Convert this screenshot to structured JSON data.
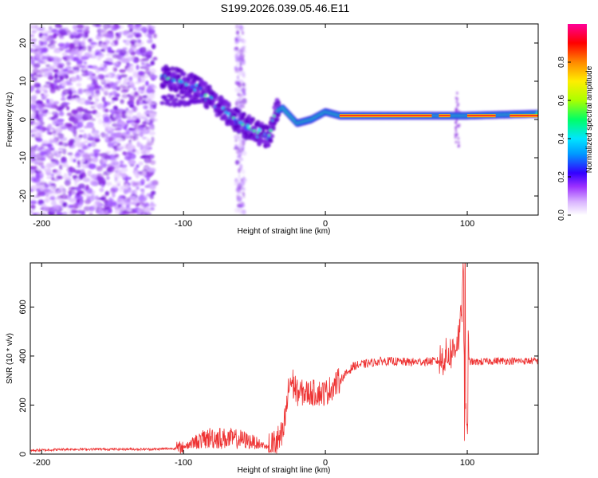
{
  "title": "S199.2026.039.05.46.E11",
  "chart_data": [
    {
      "type": "heatmap",
      "name": "spectrogram",
      "xlabel": "Height of straight line (km)",
      "ylabel": "Frequency (Hz)",
      "xlim": [
        -208,
        150
      ],
      "ylim": [
        -25,
        25
      ],
      "xticks": [
        -200,
        -100,
        0,
        100
      ],
      "yticks": [
        -20,
        -10,
        0,
        10,
        20
      ],
      "colorbar": {
        "label": "Normalized spectral amplitude",
        "range": [
          0,
          1
        ],
        "ticks": [
          0.0,
          0.2,
          0.4,
          0.6,
          0.8
        ],
        "colors": [
          "#ffffff",
          "#d9b3ff",
          "#9b30ff",
          "#3300ff",
          "#0099ff",
          "#00e5ff",
          "#00ff66",
          "#aaff00",
          "#ffee00",
          "#ff8800",
          "#ff0000",
          "#ff0099"
        ]
      },
      "ridge": [
        {
          "x": -115,
          "y": 11
        },
        {
          "x": -100,
          "y": 10
        },
        {
          "x": -90,
          "y": 8
        },
        {
          "x": -80,
          "y": 5
        },
        {
          "x": -70,
          "y": 2
        },
        {
          "x": -60,
          "y": -1
        },
        {
          "x": -50,
          "y": -3
        },
        {
          "x": -40,
          "y": -5
        },
        {
          "x": -35,
          "y": 2
        },
        {
          "x": -30,
          "y": 3
        },
        {
          "x": -20,
          "y": -1
        },
        {
          "x": -10,
          "y": 0
        },
        {
          "x": 0,
          "y": 2
        },
        {
          "x": 10,
          "y": 1
        },
        {
          "x": 90,
          "y": 1
        },
        {
          "x": 100,
          "y": 1
        },
        {
          "x": 150,
          "y": 1.5
        }
      ]
    },
    {
      "type": "line",
      "name": "snr",
      "xlabel": "Height of straight line (km)",
      "ylabel": "SNR (10 * v/v)",
      "xlim": [
        -208,
        150
      ],
      "ylim": [
        0,
        780
      ],
      "xticks": [
        -200,
        -100,
        0,
        100
      ],
      "yticks": [
        0,
        200,
        400,
        600
      ],
      "color": "#ee3333",
      "series": [
        {
          "name": "SNR",
          "x": [
            -208,
            -180,
            -150,
            -120,
            -100,
            -90,
            -80,
            -70,
            -60,
            -50,
            -40,
            -30,
            -25,
            -22,
            -20,
            -10,
            0,
            10,
            20,
            40,
            60,
            80,
            90,
            95,
            97,
            98,
            100,
            105,
            120,
            150
          ],
          "y": [
            15,
            20,
            20,
            20,
            25,
            70,
            100,
            90,
            85,
            60,
            20,
            70,
            300,
            280,
            250,
            250,
            250,
            300,
            360,
            380,
            375,
            380,
            420,
            500,
            780,
            200,
            380,
            375,
            380,
            380
          ]
        }
      ]
    }
  ]
}
